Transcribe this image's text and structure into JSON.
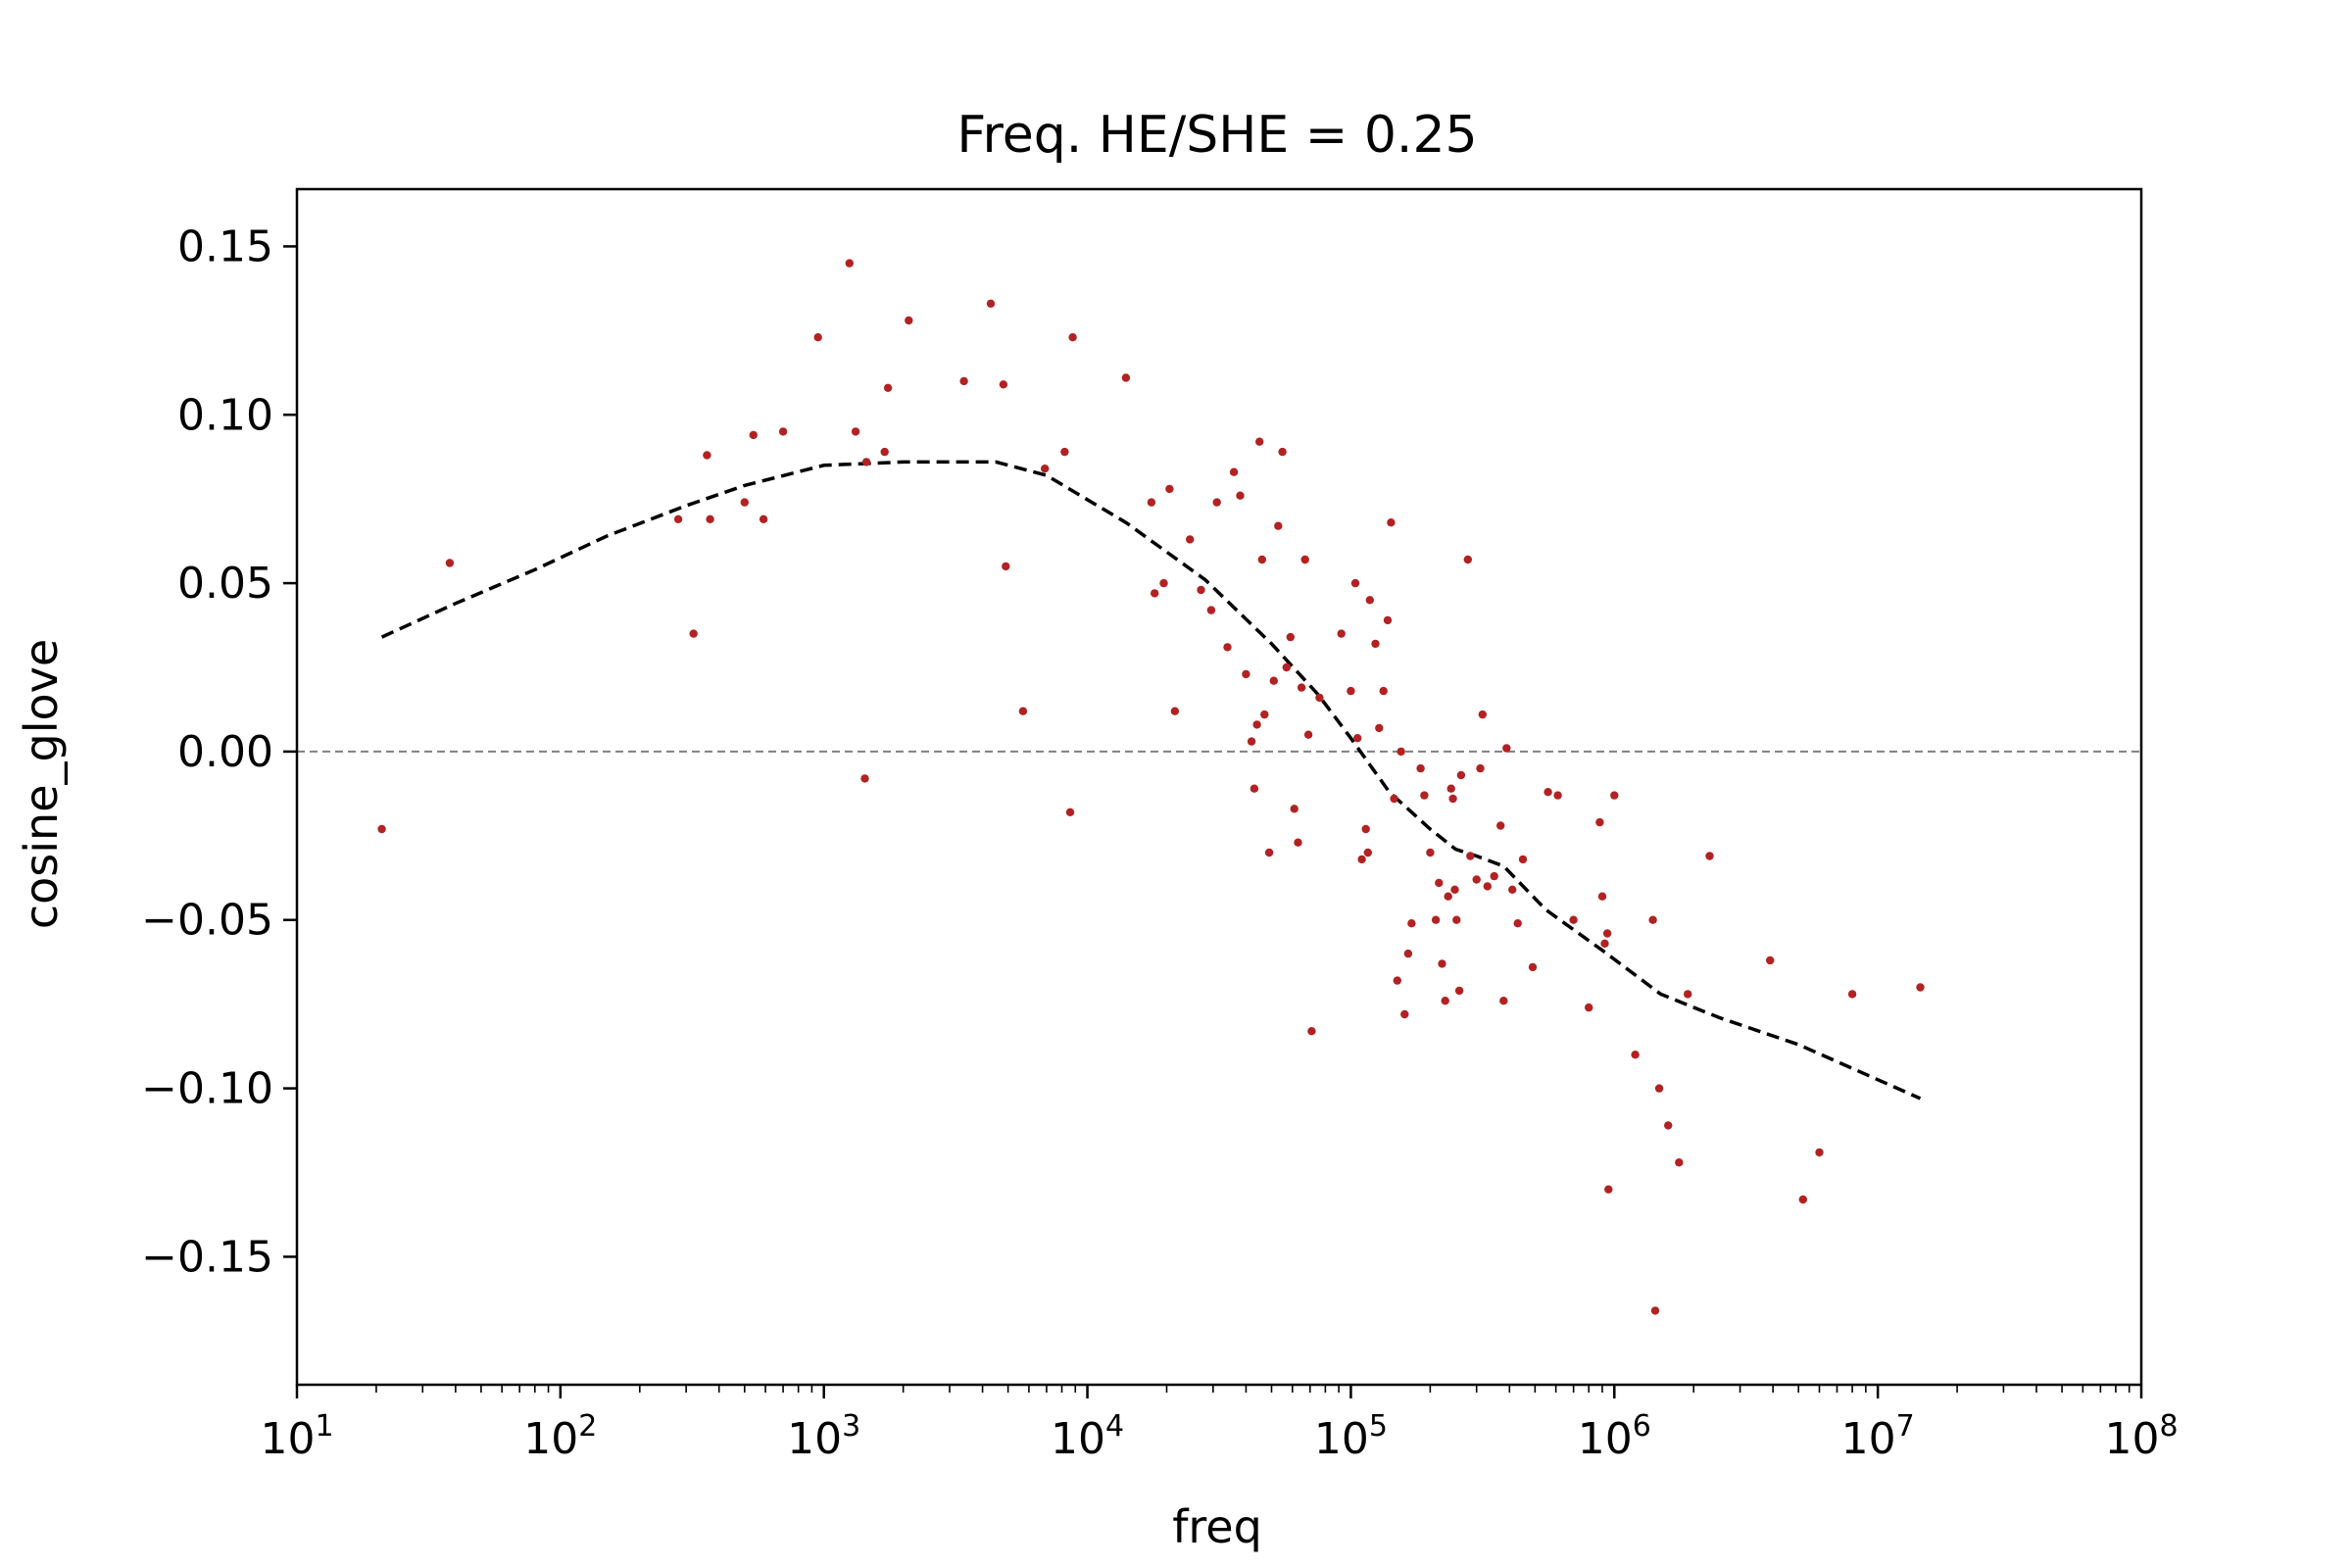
{
  "chart_data": {
    "type": "scatter",
    "title": "Freq. HE/SHE = 0.25",
    "xlabel": "freq",
    "ylabel": "cosine_glove",
    "xscale": "log",
    "xlim": [
      10,
      100000000
    ],
    "ylim": [
      -0.188,
      0.167
    ],
    "x_ticks": [
      {
        "base": "10",
        "exp": "1",
        "value": 10
      },
      {
        "base": "10",
        "exp": "2",
        "value": 100
      },
      {
        "base": "10",
        "exp": "3",
        "value": 1000
      },
      {
        "base": "10",
        "exp": "4",
        "value": 10000
      },
      {
        "base": "10",
        "exp": "5",
        "value": 100000
      },
      {
        "base": "10",
        "exp": "6",
        "value": 1000000
      },
      {
        "base": "10",
        "exp": "7",
        "value": 10000000
      },
      {
        "base": "10",
        "exp": "8",
        "value": 100000000
      }
    ],
    "y_ticks": [
      {
        "label": "0.15",
        "value": 0.15
      },
      {
        "label": "0.10",
        "value": 0.1
      },
      {
        "label": "0.05",
        "value": 0.05
      },
      {
        "label": "0.00",
        "value": 0.0
      },
      {
        "label": "−0.05",
        "value": -0.05
      },
      {
        "label": "−0.10",
        "value": -0.1
      },
      {
        "label": "−0.15",
        "value": -0.15
      }
    ],
    "reference_line": {
      "y": 0,
      "style": "dashed",
      "color": "#808080"
    },
    "grid": false,
    "series": [
      {
        "kind": "scatter",
        "color": "#b22222",
        "points": [
          [
            21,
            -0.023
          ],
          [
            38,
            0.056
          ],
          [
            280,
            0.069
          ],
          [
            320,
            0.035
          ],
          [
            360,
            0.088
          ],
          [
            370,
            0.069
          ],
          [
            500,
            0.074
          ],
          [
            540,
            0.094
          ],
          [
            590,
            0.069
          ],
          [
            700,
            0.095
          ],
          [
            950,
            0.123
          ],
          [
            1250,
            0.145
          ],
          [
            1320,
            0.095
          ],
          [
            1430,
            -0.008
          ],
          [
            1450,
            0.086
          ],
          [
            1700,
            0.089
          ],
          [
            1750,
            0.108
          ],
          [
            2100,
            0.128
          ],
          [
            3400,
            0.11
          ],
          [
            4300,
            0.133
          ],
          [
            4800,
            0.109
          ],
          [
            4900,
            0.055
          ],
          [
            5700,
            0.012
          ],
          [
            6900,
            0.084
          ],
          [
            8200,
            0.089
          ],
          [
            8600,
            -0.018
          ],
          [
            8800,
            0.123
          ],
          [
            14000,
            0.111
          ],
          [
            17500,
            0.074
          ],
          [
            18000,
            0.047
          ],
          [
            19500,
            0.05
          ],
          [
            20500,
            0.078
          ],
          [
            21500,
            0.012
          ],
          [
            24500,
            0.063
          ],
          [
            27000,
            0.048
          ],
          [
            29500,
            0.042
          ],
          [
            31000,
            0.074
          ],
          [
            34000,
            0.031
          ],
          [
            36000,
            0.083
          ],
          [
            38000,
            0.076
          ],
          [
            40000,
            0.023
          ],
          [
            42000,
            0.003
          ],
          [
            43000,
            -0.011
          ],
          [
            44000,
            0.008
          ],
          [
            45000,
            0.092
          ],
          [
            46000,
            0.057
          ],
          [
            47000,
            0.011
          ],
          [
            49000,
            -0.03
          ],
          [
            51000,
            0.021
          ],
          [
            53000,
            0.067
          ],
          [
            55000,
            0.089
          ],
          [
            57000,
            0.025
          ],
          [
            59000,
            0.034
          ],
          [
            61000,
            -0.017
          ],
          [
            63000,
            -0.027
          ],
          [
            65000,
            0.019
          ],
          [
            67000,
            0.057
          ],
          [
            69000,
            0.005
          ],
          [
            71000,
            -0.083
          ],
          [
            76000,
            0.016
          ],
          [
            92000,
            0.035
          ],
          [
            100000,
            0.018
          ],
          [
            104000,
            0.05
          ],
          [
            106000,
            0.004
          ],
          [
            110000,
            -0.032
          ],
          [
            114000,
            -0.023
          ],
          [
            116000,
            -0.03
          ],
          [
            118000,
            0.045
          ],
          [
            124000,
            0.032
          ],
          [
            128000,
            0.007
          ],
          [
            133000,
            0.018
          ],
          [
            138000,
            0.039
          ],
          [
            142000,
            0.068
          ],
          [
            146000,
            -0.014
          ],
          [
            150000,
            -0.068
          ],
          [
            155000,
            0.0
          ],
          [
            160000,
            -0.078
          ],
          [
            165000,
            -0.06
          ],
          [
            170000,
            -0.051
          ],
          [
            184000,
            -0.005
          ],
          [
            190000,
            -0.013
          ],
          [
            200000,
            -0.03
          ],
          [
            210000,
            -0.05
          ],
          [
            216000,
            -0.039
          ],
          [
            222000,
            -0.063
          ],
          [
            228000,
            -0.074
          ],
          [
            234000,
            -0.043
          ],
          [
            240000,
            -0.011
          ],
          [
            244000,
            -0.014
          ],
          [
            248000,
            -0.041
          ],
          [
            252000,
            -0.05
          ],
          [
            258000,
            -0.071
          ],
          [
            262000,
            -0.007
          ],
          [
            278000,
            0.057
          ],
          [
            284000,
            -0.031
          ],
          [
            300000,
            -0.038
          ],
          [
            310000,
            -0.005
          ],
          [
            316000,
            0.011
          ],
          [
            330000,
            -0.04
          ],
          [
            350000,
            -0.037
          ],
          [
            370000,
            -0.022
          ],
          [
            380000,
            -0.074
          ],
          [
            390000,
            0.001
          ],
          [
            410000,
            -0.041
          ],
          [
            430000,
            -0.051
          ],
          [
            450000,
            -0.032
          ],
          [
            490000,
            -0.064
          ],
          [
            560000,
            -0.012
          ],
          [
            610000,
            -0.013
          ],
          [
            700000,
            -0.05
          ],
          [
            800000,
            -0.076
          ],
          [
            880000,
            -0.021
          ],
          [
            900000,
            -0.043
          ],
          [
            920000,
            -0.057
          ],
          [
            940000,
            -0.054
          ],
          [
            950000,
            -0.13
          ],
          [
            1000000,
            -0.013
          ],
          [
            1200000,
            -0.09
          ],
          [
            1400000,
            -0.05
          ],
          [
            1430000,
            -0.166
          ],
          [
            1480000,
            -0.1
          ],
          [
            1600000,
            -0.111
          ],
          [
            1760000,
            -0.122
          ],
          [
            1900000,
            -0.072
          ],
          [
            2300000,
            -0.031
          ],
          [
            3900000,
            -0.062
          ],
          [
            5200000,
            -0.133
          ],
          [
            6000000,
            -0.119
          ],
          [
            8000000,
            -0.072
          ],
          [
            14500000,
            -0.07
          ]
        ]
      },
      {
        "kind": "line",
        "style": "dashed",
        "color": "#000000",
        "points": [
          [
            21,
            0.034
          ],
          [
            40,
            0.044
          ],
          [
            80,
            0.054
          ],
          [
            150,
            0.064
          ],
          [
            300,
            0.073
          ],
          [
            500,
            0.079
          ],
          [
            1000,
            0.085
          ],
          [
            2000,
            0.086
          ],
          [
            4500,
            0.086
          ],
          [
            7000,
            0.082
          ],
          [
            14000,
            0.068
          ],
          [
            28000,
            0.051
          ],
          [
            50000,
            0.032
          ],
          [
            75000,
            0.017
          ],
          [
            100000,
            0.004
          ],
          [
            140000,
            -0.012
          ],
          [
            200000,
            -0.023
          ],
          [
            250000,
            -0.029
          ],
          [
            300000,
            -0.031
          ],
          [
            380000,
            -0.034
          ],
          [
            550000,
            -0.047
          ],
          [
            900000,
            -0.059
          ],
          [
            1500000,
            -0.072
          ],
          [
            2500000,
            -0.079
          ],
          [
            5000000,
            -0.087
          ],
          [
            14500000,
            -0.103
          ]
        ]
      }
    ]
  }
}
